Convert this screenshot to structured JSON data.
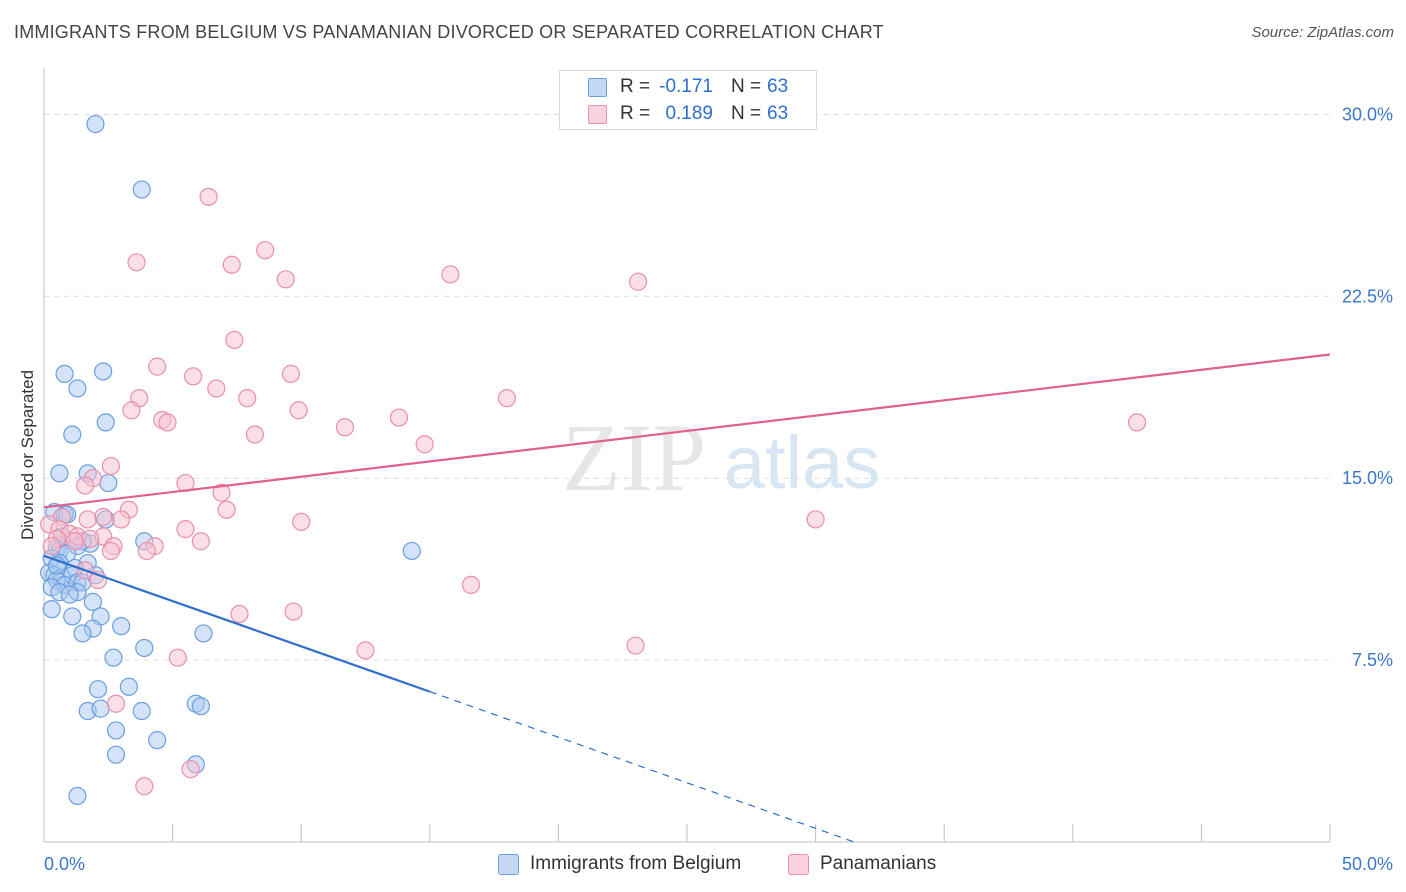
{
  "title": "IMMIGRANTS FROM BELGIUM VS PANAMANIAN DIVORCED OR SEPARATED CORRELATION CHART",
  "source": "Source: ZipAtlas.com",
  "watermark": {
    "zip": "ZIP",
    "atlas": "atlas"
  },
  "colors": {
    "blue_fill": "#a9c8f0",
    "blue_stroke": "#6a9fe0",
    "blue_line": "#2f6fcc",
    "pink_fill": "#f6bfd0",
    "pink_stroke": "#ea8fac",
    "pink_line": "#e06090",
    "axis_text": "#3b78c9",
    "grid": "#dcdcdc"
  },
  "legend_top": [
    {
      "r_label": "R =",
      "r_value": "-0.171",
      "n_label": "N =",
      "n_value": "63",
      "color": "blue"
    },
    {
      "r_label": "R =",
      "r_value": "0.189",
      "n_label": "N =",
      "n_value": "63",
      "color": "pink"
    }
  ],
  "legend_bottom": [
    {
      "label": "Immigrants from Belgium",
      "color": "blue"
    },
    {
      "label": "Panamanians",
      "color": "pink"
    }
  ],
  "chart_data": {
    "type": "scatter",
    "title": "IMMIGRANTS FROM BELGIUM VS PANAMANIAN DIVORCED OR SEPARATED CORRELATION CHART",
    "xlabel": "",
    "ylabel": "Divorced or Separated",
    "xlim": [
      0,
      50
    ],
    "ylim": [
      0,
      31.5
    ],
    "x_tick_labels": [
      "0.0%",
      "50.0%"
    ],
    "y_ticks": [
      7.5,
      15.0,
      22.5,
      30.0
    ],
    "y_tick_labels": [
      "7.5%",
      "15.0%",
      "22.5%",
      "30.0%"
    ],
    "grid": true,
    "series": [
      {
        "name": "Immigrants from Belgium",
        "color": "blue",
        "r": -0.171,
        "n": 63,
        "trend": {
          "x": [
            0,
            15
          ],
          "y": [
            11.8,
            6.2
          ],
          "dashed_to": [
            31.5,
            0
          ]
        },
        "points": [
          [
            2.0,
            29.6
          ],
          [
            3.8,
            26.9
          ],
          [
            0.8,
            19.3
          ],
          [
            2.3,
            19.4
          ],
          [
            1.3,
            18.7
          ],
          [
            2.4,
            17.3
          ],
          [
            1.1,
            16.8
          ],
          [
            0.6,
            15.2
          ],
          [
            1.7,
            15.2
          ],
          [
            2.5,
            14.8
          ],
          [
            0.4,
            13.6
          ],
          [
            0.8,
            13.5
          ],
          [
            0.9,
            13.5
          ],
          [
            2.4,
            13.3
          ],
          [
            3.9,
            12.4
          ],
          [
            1.8,
            12.3
          ],
          [
            1.5,
            12.4
          ],
          [
            1.3,
            12.2
          ],
          [
            0.5,
            12.1
          ],
          [
            0.6,
            12.0
          ],
          [
            0.9,
            11.9
          ],
          [
            0.3,
            11.7
          ],
          [
            0.6,
            11.5
          ],
          [
            1.7,
            11.5
          ],
          [
            1.2,
            11.3
          ],
          [
            0.2,
            11.1
          ],
          [
            0.4,
            11.0
          ],
          [
            0.7,
            10.9
          ],
          [
            1.1,
            11.0
          ],
          [
            0.5,
            10.8
          ],
          [
            0.8,
            10.6
          ],
          [
            1.3,
            10.7
          ],
          [
            1.5,
            10.7
          ],
          [
            0.3,
            10.5
          ],
          [
            0.6,
            10.3
          ],
          [
            1.3,
            10.3
          ],
          [
            1.9,
            9.9
          ],
          [
            0.3,
            9.6
          ],
          [
            1.1,
            9.3
          ],
          [
            2.2,
            9.3
          ],
          [
            3.0,
            8.9
          ],
          [
            1.9,
            8.8
          ],
          [
            1.5,
            8.6
          ],
          [
            6.2,
            8.6
          ],
          [
            3.9,
            8.0
          ],
          [
            2.7,
            7.6
          ],
          [
            2.1,
            6.3
          ],
          [
            3.3,
            6.4
          ],
          [
            5.9,
            5.7
          ],
          [
            6.1,
            5.6
          ],
          [
            1.7,
            5.4
          ],
          [
            2.2,
            5.5
          ],
          [
            3.8,
            5.4
          ],
          [
            2.8,
            4.6
          ],
          [
            4.4,
            4.2
          ],
          [
            2.8,
            3.6
          ],
          [
            5.9,
            3.2
          ],
          [
            1.3,
            1.9
          ],
          [
            14.3,
            12.0
          ],
          [
            0.5,
            11.4
          ],
          [
            1.0,
            10.2
          ],
          [
            2.0,
            11.0
          ],
          [
            0.7,
            12.6
          ]
        ]
      },
      {
        "name": "Panamanians",
        "color": "pink",
        "r": 0.189,
        "n": 63,
        "trend": {
          "x": [
            0,
            50
          ],
          "y": [
            13.8,
            20.1
          ]
        },
        "points": [
          [
            6.4,
            26.6
          ],
          [
            8.6,
            24.4
          ],
          [
            3.6,
            23.9
          ],
          [
            7.3,
            23.8
          ],
          [
            9.4,
            23.2
          ],
          [
            15.8,
            23.4
          ],
          [
            23.1,
            23.1
          ],
          [
            7.4,
            20.7
          ],
          [
            4.4,
            19.6
          ],
          [
            5.8,
            19.2
          ],
          [
            9.6,
            19.3
          ],
          [
            6.7,
            18.7
          ],
          [
            3.7,
            18.3
          ],
          [
            7.9,
            18.3
          ],
          [
            18.0,
            18.3
          ],
          [
            3.4,
            17.8
          ],
          [
            9.9,
            17.8
          ],
          [
            4.6,
            17.4
          ],
          [
            4.8,
            17.3
          ],
          [
            13.8,
            17.5
          ],
          [
            11.7,
            17.1
          ],
          [
            42.5,
            17.3
          ],
          [
            8.2,
            16.8
          ],
          [
            14.8,
            16.4
          ],
          [
            2.6,
            15.5
          ],
          [
            1.9,
            15.0
          ],
          [
            5.5,
            14.8
          ],
          [
            1.6,
            14.7
          ],
          [
            6.9,
            14.4
          ],
          [
            7.1,
            13.7
          ],
          [
            3.3,
            13.7
          ],
          [
            2.3,
            13.4
          ],
          [
            0.7,
            13.4
          ],
          [
            1.7,
            13.3
          ],
          [
            3.0,
            13.3
          ],
          [
            0.2,
            13.1
          ],
          [
            10.0,
            13.2
          ],
          [
            30.0,
            13.3
          ],
          [
            0.6,
            12.9
          ],
          [
            5.5,
            12.9
          ],
          [
            1.0,
            12.7
          ],
          [
            1.3,
            12.6
          ],
          [
            2.3,
            12.6
          ],
          [
            0.5,
            12.5
          ],
          [
            1.8,
            12.5
          ],
          [
            1.2,
            12.4
          ],
          [
            6.1,
            12.4
          ],
          [
            2.7,
            12.2
          ],
          [
            0.3,
            12.2
          ],
          [
            4.3,
            12.2
          ],
          [
            2.6,
            12.0
          ],
          [
            4.0,
            12.0
          ],
          [
            1.6,
            11.2
          ],
          [
            2.1,
            10.8
          ],
          [
            16.6,
            10.6
          ],
          [
            7.6,
            9.4
          ],
          [
            9.7,
            9.5
          ],
          [
            12.5,
            7.9
          ],
          [
            23.0,
            8.1
          ],
          [
            5.2,
            7.6
          ],
          [
            2.8,
            5.7
          ],
          [
            5.7,
            3.0
          ],
          [
            3.9,
            2.3
          ]
        ]
      }
    ]
  }
}
